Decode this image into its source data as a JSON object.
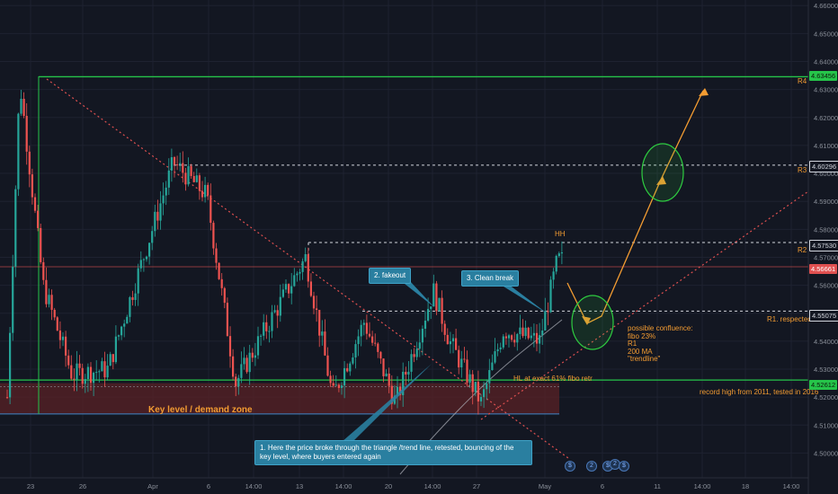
{
  "colors": {
    "background": "#131722",
    "grid": "#1e2230",
    "up": "#26a69a",
    "down": "#ef5350",
    "green_line": "#26c44a",
    "white_dash": "#d1d4dc",
    "red_line": "#e05050",
    "orange": "#f39c32",
    "zone": "#5a2226",
    "note": "#2a7fa0",
    "axis_text": "#8a8f99"
  },
  "chart_data": {
    "type": "candlestick",
    "symbol_timeframe": "",
    "y_axis": {
      "min": 4.495,
      "max": 4.662,
      "ticks": [
        "4.66000",
        "4.65000",
        "4.64000",
        "4.63000",
        "4.62000",
        "4.61000",
        "4.60000",
        "4.59000",
        "4.58000",
        "4.57000",
        "4.56000",
        "4.55000",
        "4.54000",
        "4.53000",
        "4.52000",
        "4.51000",
        "4.50000"
      ]
    },
    "x_axis": {
      "ticks": [
        "23",
        "26",
        "Apr",
        "6",
        "14:00",
        "13",
        "14:00",
        "20",
        "14:00",
        "27",
        "May",
        "6",
        "11",
        "14:00",
        "18",
        "14:00"
      ]
    },
    "candles_sample_ohlc": [
      [
        4.52,
        4.542,
        4.515,
        4.538
      ],
      [
        4.538,
        4.61,
        4.53,
        4.605
      ],
      [
        4.605,
        4.635,
        4.59,
        4.625
      ],
      [
        4.625,
        4.63,
        4.58,
        4.59
      ],
      [
        4.59,
        4.605,
        4.56,
        4.57
      ],
      [
        4.57,
        4.59,
        4.55,
        4.555
      ],
      [
        4.555,
        4.565,
        4.525,
        4.53
      ],
      [
        4.53,
        4.55,
        4.52,
        4.545
      ],
      [
        4.545,
        4.57,
        4.54,
        4.565
      ],
      [
        4.565,
        4.585,
        4.555,
        4.58
      ],
      [
        4.58,
        4.603,
        4.575,
        4.6
      ],
      [
        4.6,
        4.603,
        4.57,
        4.575
      ],
      [
        4.575,
        4.59,
        4.55,
        4.56
      ],
      [
        4.56,
        4.565,
        4.53,
        4.535
      ],
      [
        4.535,
        4.55,
        4.525,
        4.545
      ],
      [
        4.545,
        4.57,
        4.54,
        4.565
      ],
      [
        4.565,
        4.569,
        4.545,
        4.55
      ],
      [
        4.55,
        4.555,
        4.52,
        4.525
      ],
      [
        4.525,
        4.535,
        4.515,
        4.53
      ],
      [
        4.53,
        4.54,
        4.518,
        4.522
      ],
      [
        4.522,
        4.545,
        4.52,
        4.54
      ],
      [
        4.54,
        4.558,
        4.535,
        4.555
      ],
      [
        4.555,
        4.556,
        4.535,
        4.54
      ],
      [
        4.54,
        4.545,
        4.518,
        4.525
      ],
      [
        4.525,
        4.548,
        4.522,
        4.545
      ],
      [
        4.545,
        4.552,
        4.54,
        4.548
      ],
      [
        4.548,
        4.551,
        4.54,
        4.55
      ],
      [
        4.55,
        4.569,
        4.548,
        4.568
      ]
    ],
    "price_labels": [
      {
        "value": 4.63456,
        "text": "4.63456",
        "style": "green",
        "level": "R4"
      },
      {
        "value": 4.60296,
        "text": "4.60296",
        "style": "dark",
        "level": "R3"
      },
      {
        "value": 4.5753,
        "text": "4.57530",
        "style": "dark",
        "level": "R2"
      },
      {
        "value": 4.56661,
        "text": "4.56661",
        "style": "red",
        "level": ""
      },
      {
        "value": 4.55075,
        "text": "4.55075",
        "style": "dark",
        "level": ""
      },
      {
        "value": 4.52612,
        "text": "4.52612",
        "style": "green",
        "level": ""
      }
    ],
    "levels": {
      "r4": 4.63456,
      "r3": 4.60296,
      "r2": 4.5753,
      "current": 4.56661,
      "r1": 4.55075,
      "record_high": 4.52612,
      "zone_top": 4.525,
      "zone_bottom": 4.514
    }
  },
  "annotations": {
    "r4": "R4",
    "r3": "R3",
    "r2": "R2",
    "r1": "R1. respected",
    "hh": "HH",
    "record_high": "record high from 2011, tested in 2016",
    "hl": "HL at exact 61% fibo retr",
    "key_level": "Key level / demand zone",
    "fakeout": "2. fakeout",
    "clean_break": "3. Clean break",
    "note1": "1. Here the price broke through the triangle /trend line, retested, bouncing of the key level, where buyers entered again",
    "confluence": [
      "possible confluence:",
      "fibo 23%",
      "R1",
      "200 MA",
      "\"trendline\""
    ]
  },
  "events": [
    "2",
    "2"
  ]
}
